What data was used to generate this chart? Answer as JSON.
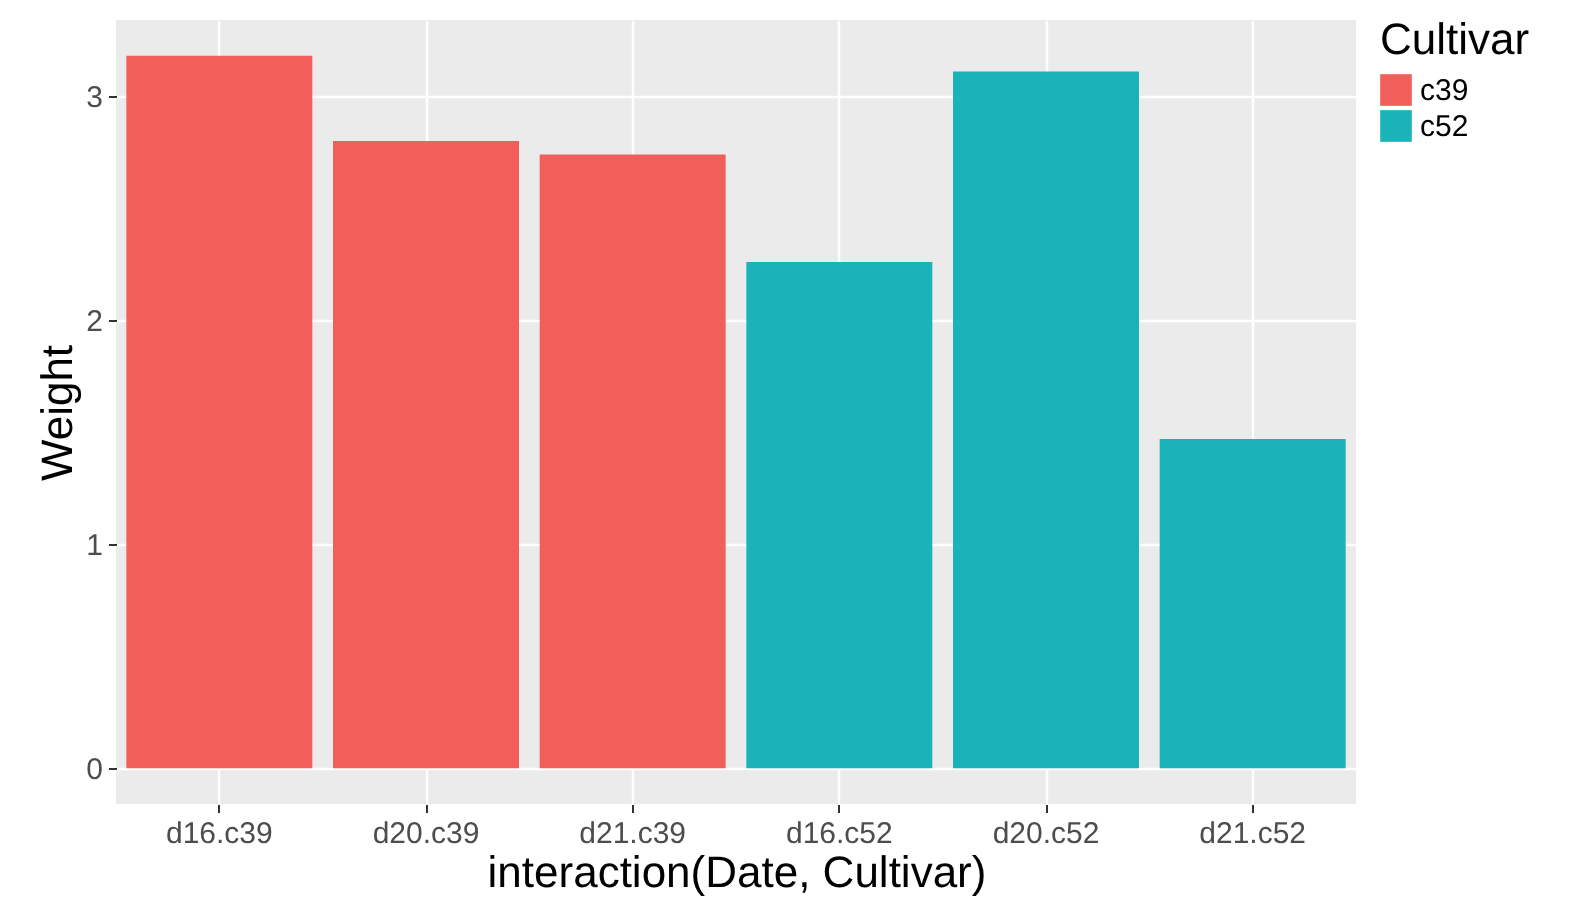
{
  "chart_data": {
    "type": "bar",
    "xlabel": "interaction(Date, Cultivar)",
    "ylabel": "Weight",
    "legend_title": "Cultivar",
    "categories": [
      "d16.c39",
      "d20.c39",
      "d21.c39",
      "d16.c52",
      "d20.c52",
      "d21.c52"
    ],
    "series": [
      {
        "name": "c39",
        "color": "#f25f5a",
        "values": [
          3.18,
          2.8,
          2.74,
          null,
          null,
          null
        ]
      },
      {
        "name": "c52",
        "color": "#19b3b8",
        "values": [
          null,
          null,
          null,
          2.26,
          3.11,
          1.47
        ]
      }
    ],
    "ylim": [
      -0.16,
      3.34
    ],
    "yticks": [
      0,
      1,
      2,
      3
    ],
    "grid": true,
    "legend": "right"
  }
}
